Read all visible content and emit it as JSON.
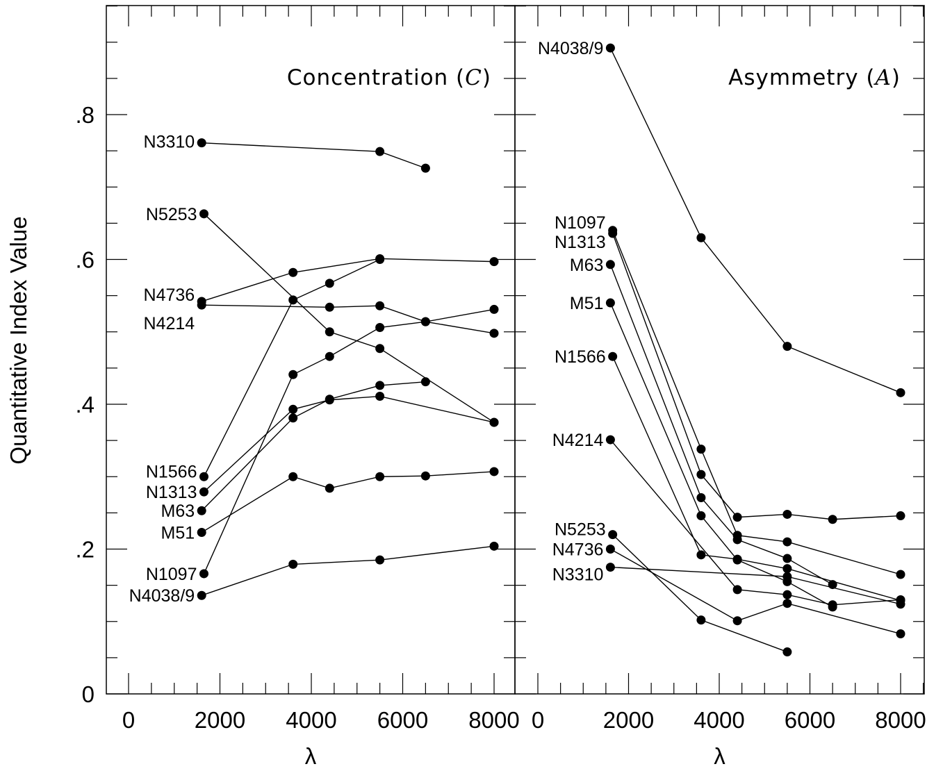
{
  "ylabel": "Quantitative Index Value",
  "chart_data": [
    {
      "type": "line",
      "title_text": "Concentration (",
      "title_symbol": "C",
      "title_close": ")",
      "xlabel": "λ",
      "xlim": [
        -500,
        8500
      ],
      "ylim": [
        0,
        0.95
      ],
      "xticks": [
        0,
        2000,
        4000,
        6000,
        8000
      ],
      "xtick_labels": [
        "0",
        "2000",
        "4000",
        "6000",
        "8000"
      ],
      "yticks": [
        0,
        0.2,
        0.4,
        0.6,
        0.8
      ],
      "ytick_labels": [
        "0",
        ".2",
        ".4",
        ".6",
        ".8"
      ],
      "series": [
        {
          "name": "N3310",
          "x": [
            1600,
            5500,
            6500
          ],
          "y": [
            0.761,
            0.749,
            0.726
          ]
        },
        {
          "name": "N5253",
          "x": [
            1650,
            4400,
            5500,
            8000
          ],
          "y": [
            0.663,
            0.5,
            0.477,
            0.375
          ]
        },
        {
          "name": "N4736",
          "x": [
            1600,
            3600,
            5500,
            8000
          ],
          "y": [
            0.542,
            0.582,
            0.601,
            0.597
          ]
        },
        {
          "name": "N4214",
          "x": [
            1600,
            4400,
            5500,
            6500,
            8000
          ],
          "y": [
            0.537,
            0.534,
            0.536,
            0.514,
            0.498
          ]
        },
        {
          "name": "N1566",
          "x": [
            1650,
            3600,
            4400,
            5500
          ],
          "y": [
            0.3,
            0.544,
            0.567,
            0.6
          ]
        },
        {
          "name": "N1313",
          "x": [
            1650,
            3600,
            4400,
            5500,
            8000
          ],
          "y": [
            0.279,
            0.393,
            0.406,
            0.411,
            0.375
          ]
        },
        {
          "name": "M63",
          "x": [
            1600,
            3600,
            4400,
            5500,
            6500
          ],
          "y": [
            0.253,
            0.381,
            0.407,
            0.426,
            0.431
          ]
        },
        {
          "name": "M51",
          "x": [
            1600,
            3600,
            4400,
            5500,
            6500,
            8000
          ],
          "y": [
            0.223,
            0.3,
            0.284,
            0.3,
            0.301,
            0.307
          ]
        },
        {
          "name": "N1097",
          "x": [
            1650,
            3600,
            4400,
            5500,
            6500,
            8000
          ],
          "y": [
            0.166,
            0.441,
            0.466,
            0.506,
            0.514,
            0.531
          ]
        },
        {
          "name": "N4038/9",
          "x": [
            1600,
            3600,
            5500,
            8000
          ],
          "y": [
            0.136,
            0.179,
            0.185,
            0.204
          ]
        }
      ]
    },
    {
      "type": "line",
      "title_text": "Asymmetry (",
      "title_symbol": "A",
      "title_close": ")",
      "xlabel": "λ",
      "xlim": [
        -500,
        8500
      ],
      "ylim": [
        0,
        0.95
      ],
      "xticks": [
        0,
        2000,
        4000,
        6000,
        8000
      ],
      "xtick_labels": [
        "0",
        "2000",
        "4000",
        "6000",
        "8000"
      ],
      "series": [
        {
          "name": "N4038/9",
          "x": [
            1600,
            3600,
            5500,
            8000
          ],
          "y": [
            0.892,
            0.63,
            0.48,
            0.416
          ]
        },
        {
          "name": "N1097",
          "x": [
            1650,
            3600,
            4400,
            5500,
            8000
          ],
          "y": [
            0.64,
            0.338,
            0.219,
            0.21,
            0.165
          ]
        },
        {
          "name": "N1313",
          "x": [
            1650,
            3600,
            4400,
            5500,
            6500,
            8000
          ],
          "y": [
            0.636,
            0.303,
            0.244,
            0.248,
            0.241,
            0.246
          ]
        },
        {
          "name": "M63",
          "x": [
            1600,
            3600,
            4400,
            5500,
            6500
          ],
          "y": [
            0.593,
            0.271,
            0.213,
            0.187,
            0.151
          ]
        },
        {
          "name": "M51",
          "x": [
            1600,
            3600,
            4400,
            5500,
            6500
          ],
          "y": [
            0.54,
            0.246,
            0.185,
            0.155,
            0.12
          ]
        },
        {
          "name": "N1566",
          "x": [
            1650,
            3600,
            4400,
            5500,
            8000
          ],
          "y": [
            0.466,
            0.192,
            0.186,
            0.173,
            0.129
          ]
        },
        {
          "name": "N4214",
          "x": [
            1600,
            4400,
            5500,
            6500,
            8000
          ],
          "y": [
            0.351,
            0.144,
            0.137,
            0.123,
            0.13
          ]
        },
        {
          "name": "N5253",
          "x": [
            1650,
            3600,
            5500
          ],
          "y": [
            0.22,
            0.102,
            0.058
          ]
        },
        {
          "name": "N4736",
          "x": [
            1600,
            4400,
            5500,
            8000
          ],
          "y": [
            0.2,
            0.101,
            0.125,
            0.083
          ]
        },
        {
          "name": "N3310",
          "x": [
            1600,
            5500,
            8000
          ],
          "y": [
            0.175,
            0.162,
            0.124
          ]
        }
      ]
    }
  ]
}
